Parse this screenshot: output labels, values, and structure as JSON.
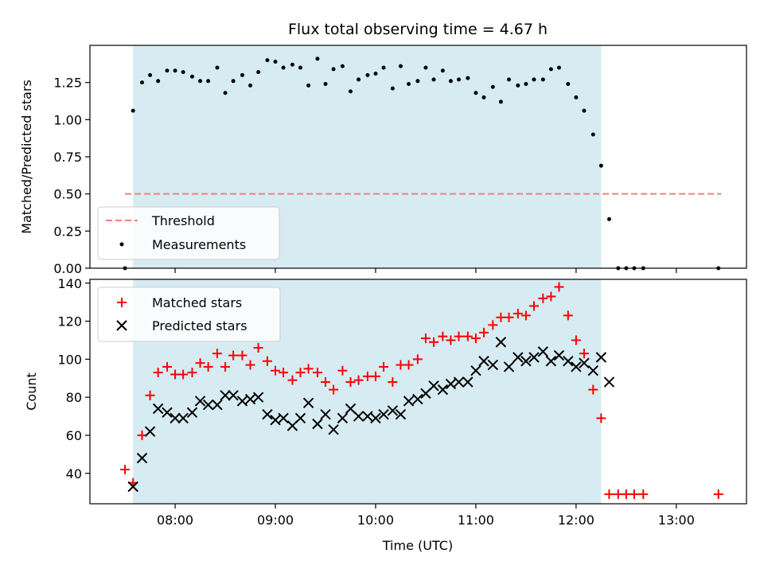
{
  "chart_data": [
    {
      "type": "scatter",
      "title": "Flux total observing time = 4.67 h",
      "xlabel": "",
      "ylabel": "Matched/Predicted stars",
      "xlim": [
        7.15,
        13.7
      ],
      "ylim": [
        0,
        1.5
      ],
      "yticks": [
        0,
        0.25,
        0.5,
        0.75,
        1.0,
        1.25
      ],
      "ytick_labels": [
        "0.00",
        "0.25",
        "0.50",
        "0.75",
        "1.00",
        "1.25"
      ],
      "observing_window": [
        7.58,
        12.25
      ],
      "threshold": {
        "name": "Threshold",
        "y": 0.5,
        "x": [
          7.5,
          13.45
        ],
        "color": "#f08080"
      },
      "measurements": {
        "name": "Measurements",
        "x": [
          7.5,
          7.58,
          7.67,
          7.75,
          7.83,
          7.92,
          8.0,
          8.08,
          8.17,
          8.25,
          8.33,
          8.42,
          8.5,
          8.58,
          8.67,
          8.75,
          8.83,
          8.92,
          9.0,
          9.08,
          9.17,
          9.25,
          9.33,
          9.42,
          9.5,
          9.58,
          9.67,
          9.75,
          9.83,
          9.92,
          10.0,
          10.08,
          10.17,
          10.25,
          10.33,
          10.42,
          10.5,
          10.58,
          10.67,
          10.75,
          10.83,
          10.92,
          11.0,
          11.08,
          11.17,
          11.25,
          11.33,
          11.42,
          11.5,
          11.58,
          11.67,
          11.75,
          11.83,
          11.92,
          12.0,
          12.08,
          12.17,
          12.25,
          12.33,
          12.42,
          12.5,
          12.58,
          12.67,
          13.42
        ],
        "y": [
          0.0,
          1.06,
          1.25,
          1.3,
          1.26,
          1.33,
          1.33,
          1.32,
          1.29,
          1.26,
          1.26,
          1.35,
          1.18,
          1.26,
          1.3,
          1.23,
          1.32,
          1.4,
          1.39,
          1.35,
          1.37,
          1.35,
          1.23,
          1.41,
          1.24,
          1.34,
          1.36,
          1.19,
          1.27,
          1.3,
          1.31,
          1.35,
          1.21,
          1.36,
          1.24,
          1.26,
          1.35,
          1.27,
          1.33,
          1.26,
          1.27,
          1.28,
          1.18,
          1.15,
          1.22,
          1.12,
          1.27,
          1.23,
          1.24,
          1.27,
          1.27,
          1.34,
          1.35,
          1.24,
          1.15,
          1.06,
          0.9,
          0.69,
          0.33,
          0.0,
          0.0,
          0.0,
          0.0,
          0.0
        ]
      },
      "legend": {
        "position": "lower-left",
        "entries": [
          "Threshold",
          "Measurements"
        ]
      }
    },
    {
      "type": "scatter",
      "title": "",
      "xlabel": "Time (UTC)",
      "ylabel": "Count",
      "xlim": [
        7.15,
        13.7
      ],
      "ylim": [
        24,
        142
      ],
      "yticks": [
        40,
        60,
        80,
        100,
        120,
        140
      ],
      "ytick_labels": [
        "40",
        "60",
        "80",
        "100",
        "120",
        "140"
      ],
      "xticks": [
        8,
        9,
        10,
        11,
        12,
        13
      ],
      "xtick_labels": [
        "08:00",
        "09:00",
        "10:00",
        "11:00",
        "12:00",
        "13:00"
      ],
      "observing_window": [
        7.58,
        12.25
      ],
      "series": [
        {
          "name": "Matched stars",
          "marker": "plus",
          "color": "#ff0000",
          "x": [
            7.5,
            7.58,
            7.67,
            7.75,
            7.83,
            7.92,
            8.0,
            8.08,
            8.17,
            8.25,
            8.33,
            8.42,
            8.5,
            8.58,
            8.67,
            8.75,
            8.83,
            8.92,
            9.0,
            9.08,
            9.17,
            9.25,
            9.33,
            9.42,
            9.5,
            9.58,
            9.67,
            9.75,
            9.83,
            9.92,
            10.0,
            10.08,
            10.17,
            10.25,
            10.33,
            10.42,
            10.5,
            10.58,
            10.67,
            10.75,
            10.83,
            10.92,
            11.0,
            11.08,
            11.17,
            11.25,
            11.33,
            11.42,
            11.5,
            11.58,
            11.67,
            11.75,
            11.83,
            11.92,
            12.0,
            12.08,
            12.17,
            12.25,
            12.33,
            12.42,
            12.5,
            12.58,
            12.67,
            13.42
          ],
          "y": [
            42,
            35,
            60,
            81,
            93,
            96,
            92,
            92,
            93,
            98,
            96,
            103,
            96,
            102,
            102,
            97,
            106,
            99,
            94,
            93,
            89,
            93,
            95,
            93,
            88,
            84,
            94,
            88,
            89,
            91,
            91,
            96,
            88,
            97,
            97,
            100,
            111,
            109,
            112,
            110,
            112,
            112,
            111,
            114,
            118,
            122,
            122,
            124,
            123,
            128,
            132,
            133,
            138,
            123,
            110,
            103,
            84,
            69,
            29,
            29,
            29,
            29,
            29,
            29
          ]
        },
        {
          "name": "Predicted stars",
          "marker": "x",
          "color": "#000000",
          "x": [
            7.58,
            7.67,
            7.75,
            7.83,
            7.92,
            8.0,
            8.08,
            8.17,
            8.25,
            8.33,
            8.42,
            8.5,
            8.58,
            8.67,
            8.75,
            8.83,
            8.92,
            9.0,
            9.08,
            9.17,
            9.25,
            9.33,
            9.42,
            9.5,
            9.58,
            9.67,
            9.75,
            9.83,
            9.92,
            10.0,
            10.08,
            10.17,
            10.25,
            10.33,
            10.42,
            10.5,
            10.58,
            10.67,
            10.75,
            10.83,
            10.92,
            11.0,
            11.08,
            11.17,
            11.25,
            11.33,
            11.42,
            11.5,
            11.58,
            11.67,
            11.75,
            11.83,
            11.92,
            12.0,
            12.08,
            12.17,
            12.25,
            12.33
          ],
          "y": [
            33,
            48,
            62,
            74,
            72,
            69,
            69,
            72,
            78,
            76,
            76,
            81,
            81,
            78,
            79,
            80,
            71,
            68,
            69,
            65,
            69,
            77,
            66,
            71,
            63,
            69,
            74,
            70,
            70,
            69,
            71,
            73,
            71,
            78,
            79,
            82,
            86,
            84,
            87,
            88,
            88,
            94,
            99,
            97,
            109,
            96,
            101,
            99,
            101,
            104,
            99,
            102,
            99,
            96,
            98,
            94,
            101,
            88
          ]
        }
      ],
      "legend": {
        "position": "top-left",
        "entries": [
          "Matched stars",
          "Predicted stars"
        ]
      }
    }
  ]
}
